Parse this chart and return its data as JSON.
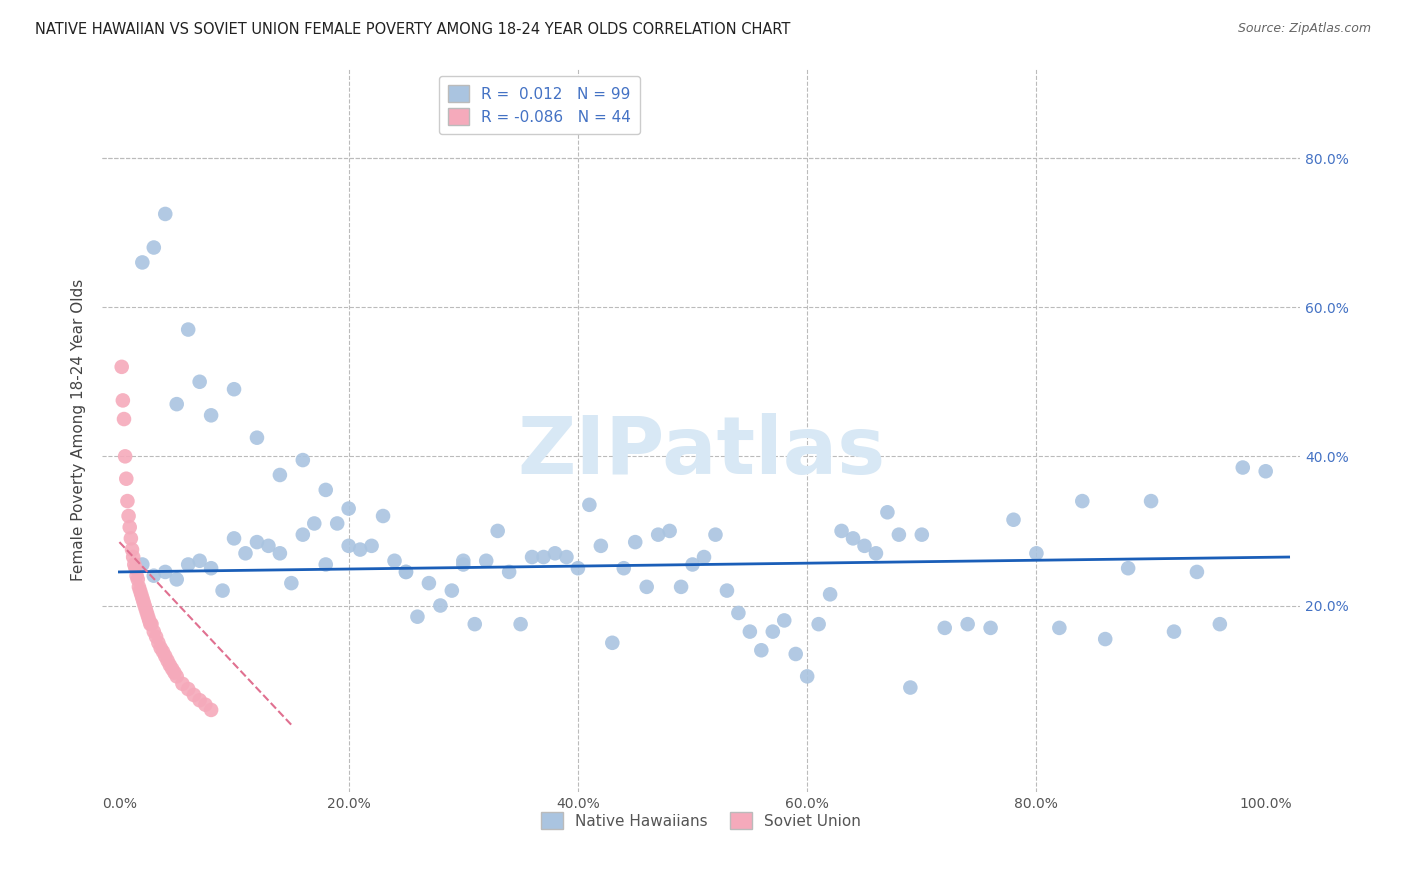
{
  "title": "NATIVE HAWAIIAN VS SOVIET UNION FEMALE POVERTY AMONG 18-24 YEAR OLDS CORRELATION CHART",
  "source": "Source: ZipAtlas.com",
  "ylabel": "Female Poverty Among 18-24 Year Olds",
  "xlim": [
    -0.015,
    1.03
  ],
  "ylim": [
    -0.05,
    0.92
  ],
  "xticks": [
    0.0,
    0.2,
    0.4,
    0.6,
    0.8,
    1.0
  ],
  "yticks": [
    0.0,
    0.2,
    0.4,
    0.6,
    0.8
  ],
  "xtick_labels": [
    "0.0%",
    "20.0%",
    "40.0%",
    "60.0%",
    "80.0%",
    "100.0%"
  ],
  "ytick_labels_right": [
    "",
    "20.0%",
    "40.0%",
    "60.0%",
    "80.0%"
  ],
  "legend_r_blue": " 0.012",
  "legend_n_blue": "99",
  "legend_r_pink": "-0.086",
  "legend_n_pink": "44",
  "blue_color": "#aac4e0",
  "pink_color": "#f5aabb",
  "trend_blue_color": "#1a5eb8",
  "trend_pink_color": "#e07090",
  "grid_color": "#bbbbbb",
  "background_color": "#ffffff",
  "watermark": "ZIPatlas",
  "watermark_color": "#d8e8f5",
  "blue_x": [
    0.02,
    0.03,
    0.04,
    0.05,
    0.06,
    0.07,
    0.08,
    0.09,
    0.1,
    0.11,
    0.12,
    0.13,
    0.14,
    0.15,
    0.16,
    0.17,
    0.18,
    0.19,
    0.2,
    0.21,
    0.22,
    0.23,
    0.24,
    0.25,
    0.26,
    0.27,
    0.28,
    0.29,
    0.3,
    0.31,
    0.32,
    0.33,
    0.34,
    0.35,
    0.36,
    0.37,
    0.38,
    0.39,
    0.4,
    0.41,
    0.42,
    0.43,
    0.44,
    0.45,
    0.46,
    0.47,
    0.48,
    0.49,
    0.5,
    0.51,
    0.52,
    0.53,
    0.54,
    0.55,
    0.56,
    0.57,
    0.58,
    0.59,
    0.6,
    0.61,
    0.62,
    0.63,
    0.64,
    0.65,
    0.66,
    0.67,
    0.68,
    0.69,
    0.7,
    0.72,
    0.74,
    0.76,
    0.78,
    0.8,
    0.82,
    0.84,
    0.86,
    0.88,
    0.9,
    0.92,
    0.94,
    0.96,
    0.98,
    1.0,
    0.02,
    0.03,
    0.04,
    0.05,
    0.06,
    0.07,
    0.08,
    0.1,
    0.12,
    0.14,
    0.16,
    0.18,
    0.2,
    0.25,
    0.3
  ],
  "blue_y": [
    0.255,
    0.24,
    0.245,
    0.235,
    0.255,
    0.26,
    0.25,
    0.22,
    0.29,
    0.27,
    0.285,
    0.28,
    0.27,
    0.23,
    0.295,
    0.31,
    0.255,
    0.31,
    0.33,
    0.275,
    0.28,
    0.32,
    0.26,
    0.245,
    0.185,
    0.23,
    0.2,
    0.22,
    0.255,
    0.175,
    0.26,
    0.3,
    0.245,
    0.175,
    0.265,
    0.265,
    0.27,
    0.265,
    0.25,
    0.335,
    0.28,
    0.15,
    0.25,
    0.285,
    0.225,
    0.295,
    0.3,
    0.225,
    0.255,
    0.265,
    0.295,
    0.22,
    0.19,
    0.165,
    0.14,
    0.165,
    0.18,
    0.135,
    0.105,
    0.175,
    0.215,
    0.3,
    0.29,
    0.28,
    0.27,
    0.325,
    0.295,
    0.09,
    0.295,
    0.17,
    0.175,
    0.17,
    0.315,
    0.27,
    0.17,
    0.34,
    0.155,
    0.25,
    0.34,
    0.165,
    0.245,
    0.175,
    0.385,
    0.38,
    0.66,
    0.68,
    0.725,
    0.47,
    0.57,
    0.5,
    0.455,
    0.49,
    0.425,
    0.375,
    0.395,
    0.355,
    0.28,
    0.245,
    0.26
  ],
  "pink_x": [
    0.002,
    0.003,
    0.004,
    0.005,
    0.006,
    0.007,
    0.008,
    0.009,
    0.01,
    0.011,
    0.012,
    0.013,
    0.014,
    0.015,
    0.016,
    0.017,
    0.018,
    0.019,
    0.02,
    0.021,
    0.022,
    0.023,
    0.024,
    0.025,
    0.026,
    0.027,
    0.028,
    0.03,
    0.032,
    0.034,
    0.036,
    0.038,
    0.04,
    0.042,
    0.044,
    0.046,
    0.048,
    0.05,
    0.055,
    0.06,
    0.065,
    0.07,
    0.075,
    0.08
  ],
  "pink_y": [
    0.52,
    0.475,
    0.45,
    0.4,
    0.37,
    0.34,
    0.32,
    0.305,
    0.29,
    0.275,
    0.265,
    0.255,
    0.25,
    0.24,
    0.235,
    0.225,
    0.22,
    0.215,
    0.21,
    0.205,
    0.2,
    0.195,
    0.19,
    0.185,
    0.18,
    0.175,
    0.175,
    0.165,
    0.158,
    0.15,
    0.143,
    0.138,
    0.132,
    0.126,
    0.12,
    0.115,
    0.11,
    0.105,
    0.095,
    0.088,
    0.08,
    0.073,
    0.067,
    0.06
  ]
}
